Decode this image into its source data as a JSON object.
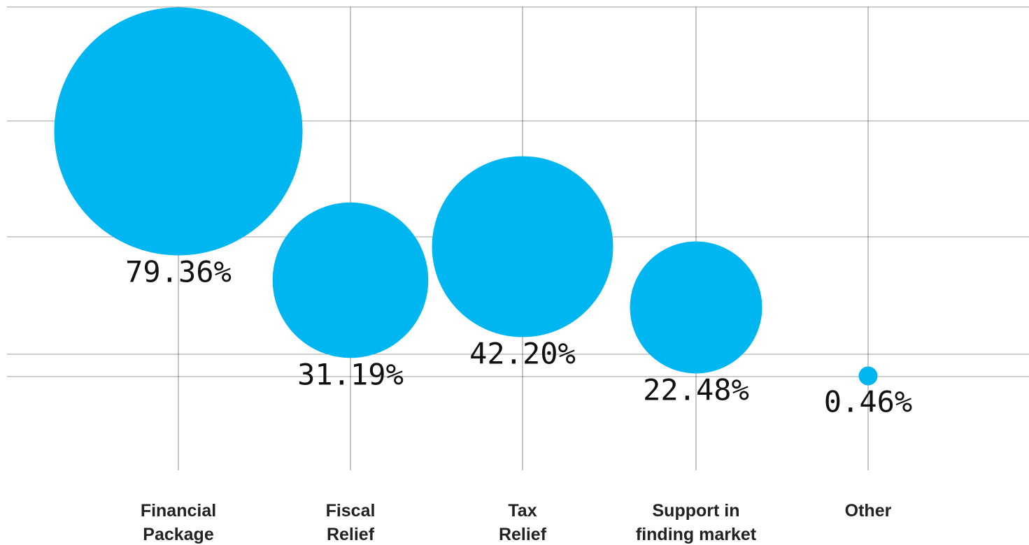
{
  "chart_data": {
    "type": "bubble",
    "title": "",
    "xlabel": "",
    "ylabel": "",
    "grid": true,
    "legend": "none",
    "bubble_color": "#00B6F0",
    "categories": [
      [
        "Financial",
        "Package"
      ],
      [
        "Fiscal",
        "Relief"
      ],
      [
        "Tax",
        "Relief"
      ],
      [
        "Support in",
        "finding market"
      ],
      [
        "Other"
      ]
    ],
    "values": [
      79.36,
      31.19,
      42.2,
      22.48,
      0.46
    ],
    "value_labels": [
      "79.36%",
      "31.19%",
      "42.20%",
      "22.48%",
      "0.46%"
    ]
  }
}
